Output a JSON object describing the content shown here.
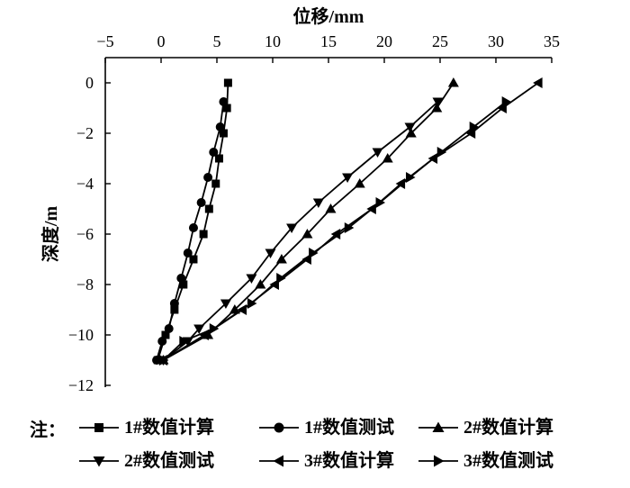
{
  "chart_data": {
    "type": "line",
    "xlabel": "位移/mm",
    "ylabel": "深度/m",
    "x_axis_position": "top",
    "xlim": [
      -5,
      35
    ],
    "ylim": [
      -12,
      0
    ],
    "xticks": [
      "−5",
      "0",
      "5",
      "10",
      "15",
      "20",
      "25",
      "30",
      "35"
    ],
    "yticks": [
      "0",
      "−2",
      "−4",
      "−6",
      "−8",
      "−10",
      "−12"
    ],
    "legend_prefix": "注：",
    "legend_position": "bottom",
    "grid": false,
    "series": [
      {
        "name": "1#数值计算",
        "marker": "square",
        "points": [
          [
            6.0,
            0
          ],
          [
            5.9,
            -1
          ],
          [
            5.6,
            -2
          ],
          [
            5.2,
            -3
          ],
          [
            4.9,
            -4
          ],
          [
            4.3,
            -5
          ],
          [
            3.8,
            -6
          ],
          [
            2.9,
            -7
          ],
          [
            2.0,
            -8
          ],
          [
            1.2,
            -9
          ],
          [
            0.4,
            -10
          ],
          [
            -0.3,
            -11
          ]
        ]
      },
      {
        "name": "1#数值测试",
        "marker": "circle",
        "points": [
          [
            5.6,
            -0.75
          ],
          [
            5.3,
            -1.75
          ],
          [
            4.7,
            -2.75
          ],
          [
            4.2,
            -3.75
          ],
          [
            3.6,
            -4.75
          ],
          [
            2.9,
            -5.75
          ],
          [
            2.4,
            -6.75
          ],
          [
            1.8,
            -7.75
          ],
          [
            1.2,
            -8.75
          ],
          [
            0.7,
            -9.75
          ],
          [
            0.1,
            -10.25
          ],
          [
            -0.4,
            -11
          ]
        ]
      },
      {
        "name": "2#数值计算",
        "marker": "triangle-up",
        "points": [
          [
            26.2,
            0
          ],
          [
            24.7,
            -1
          ],
          [
            22.4,
            -2
          ],
          [
            20.3,
            -3
          ],
          [
            17.8,
            -4
          ],
          [
            15.2,
            -5
          ],
          [
            13.1,
            -6
          ],
          [
            10.8,
            -7
          ],
          [
            8.9,
            -8
          ],
          [
            6.6,
            -9
          ],
          [
            4.2,
            -10
          ],
          [
            0.2,
            -11
          ]
        ]
      },
      {
        "name": "2#数值测试",
        "marker": "triangle-down",
        "points": [
          [
            24.8,
            -0.75
          ],
          [
            22.3,
            -1.75
          ],
          [
            19.4,
            -2.75
          ],
          [
            16.7,
            -3.75
          ],
          [
            14.1,
            -4.75
          ],
          [
            11.7,
            -5.75
          ],
          [
            9.8,
            -6.75
          ],
          [
            8.1,
            -7.75
          ],
          [
            5.8,
            -8.75
          ],
          [
            3.4,
            -9.75
          ],
          [
            2.4,
            -10.25
          ],
          [
            0.2,
            -11
          ]
        ]
      },
      {
        "name": "3#数值计算",
        "marker": "triangle-left",
        "points": [
          [
            33.8,
            0
          ],
          [
            30.6,
            -1
          ],
          [
            27.8,
            -2
          ],
          [
            24.4,
            -3
          ],
          [
            21.5,
            -4
          ],
          [
            18.9,
            -5
          ],
          [
            15.7,
            -6
          ],
          [
            13.1,
            -7
          ],
          [
            10.2,
            -8
          ],
          [
            7.3,
            -9
          ],
          [
            3.9,
            -10
          ],
          [
            0.2,
            -11
          ]
        ]
      },
      {
        "name": "3#数值测试",
        "marker": "triangle-right",
        "points": [
          [
            30.9,
            -0.75
          ],
          [
            28.0,
            -1.75
          ],
          [
            25.1,
            -2.75
          ],
          [
            22.3,
            -3.75
          ],
          [
            19.6,
            -4.75
          ],
          [
            16.8,
            -5.75
          ],
          [
            13.6,
            -6.75
          ],
          [
            10.7,
            -7.75
          ],
          [
            8.1,
            -8.75
          ],
          [
            4.7,
            -9.75
          ],
          [
            2.0,
            -10.25
          ],
          [
            0.2,
            -11
          ]
        ]
      }
    ]
  }
}
